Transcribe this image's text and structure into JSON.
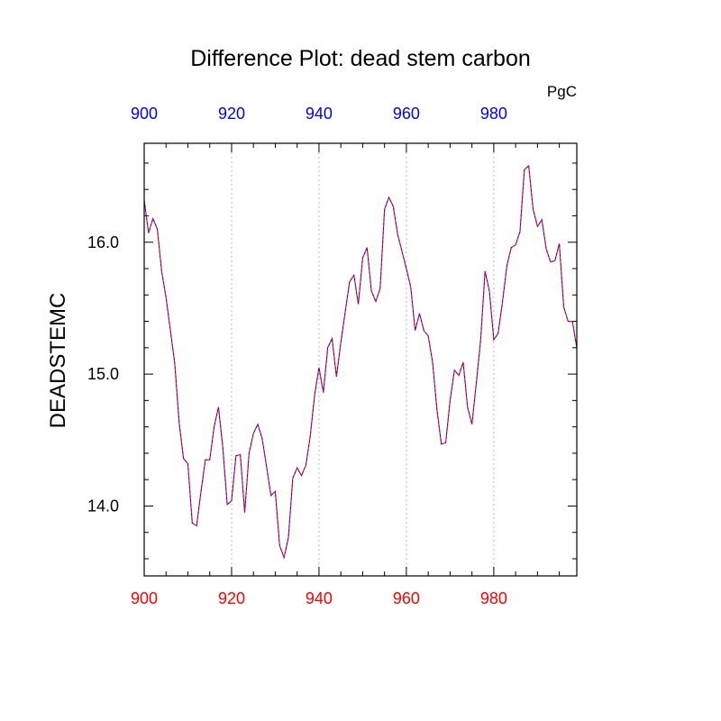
{
  "chart_data": {
    "type": "line",
    "title": "Difference Plot: dead stem carbon",
    "units": "PgC",
    "ylabel": "DEADSTEMC",
    "xlabel": "",
    "xlim": [
      900,
      999
    ],
    "ylim": [
      13.47,
      16.75
    ],
    "x_ticks": [
      900,
      920,
      940,
      960,
      980
    ],
    "y_ticks": [
      14.0,
      15.0,
      16.0
    ],
    "y_tick_labels": [
      "14.0",
      "15.0",
      "16.0"
    ],
    "x_tick_labels_bottom": [
      "900",
      "920",
      "940",
      "960",
      "980"
    ],
    "x_tick_labels_top": [
      "900",
      "920",
      "940",
      "960",
      "980"
    ],
    "grid": "vertical dotted lines at major x ticks",
    "colors": {
      "series_a": "#0000ff",
      "series_b": "#ff0000",
      "bottom_axis_labels": "#ff0000",
      "top_axis_labels": "#0000ff",
      "frame": "#000000",
      "grid": "#bbbbbb"
    },
    "x": [
      900,
      901,
      902,
      903,
      904,
      905,
      906,
      907,
      908,
      909,
      910,
      911,
      912,
      913,
      914,
      915,
      916,
      917,
      918,
      919,
      920,
      921,
      922,
      923,
      924,
      925,
      926,
      927,
      928,
      929,
      930,
      931,
      932,
      933,
      934,
      935,
      936,
      937,
      938,
      939,
      940,
      941,
      942,
      943,
      944,
      945,
      946,
      947,
      948,
      949,
      950,
      951,
      952,
      953,
      954,
      955,
      956,
      957,
      958,
      959,
      960,
      961,
      962,
      963,
      964,
      965,
      966,
      967,
      968,
      969,
      970,
      971,
      972,
      973,
      974,
      975,
      976,
      977,
      978,
      979,
      980,
      981,
      982,
      983,
      984,
      985,
      986,
      987,
      988,
      989,
      990,
      991,
      992,
      993,
      994,
      995,
      996,
      997,
      998,
      999
    ],
    "series": [
      {
        "values": [
          16.32,
          16.07,
          16.18,
          16.1,
          15.78,
          15.58,
          15.33,
          15.08,
          14.63,
          14.36,
          14.32,
          13.87,
          13.85,
          14.11,
          14.35,
          14.35,
          14.6,
          14.75,
          14.44,
          14.01,
          14.04,
          14.38,
          14.39,
          13.95,
          14.4,
          14.55,
          14.62,
          14.51,
          14.3,
          14.08,
          14.11,
          13.7,
          13.61,
          13.76,
          14.21,
          14.29,
          14.23,
          14.31,
          14.53,
          14.84,
          15.05,
          14.86,
          15.2,
          15.27,
          14.98,
          15.24,
          15.47,
          15.7,
          15.75,
          15.53,
          15.88,
          15.96,
          15.63,
          15.55,
          15.65,
          16.25,
          16.34,
          16.27,
          16.06,
          15.93,
          15.8,
          15.66,
          15.33,
          15.46,
          15.33,
          15.29,
          15.09,
          14.73,
          14.47,
          14.48,
          14.8,
          15.03,
          14.99,
          15.09,
          14.75,
          14.62,
          14.93,
          15.26,
          15.78,
          15.63,
          15.26,
          15.31,
          15.55,
          15.82,
          15.96,
          15.98,
          16.08,
          16.55,
          16.58,
          16.25,
          16.12,
          16.17,
          15.95,
          15.85,
          15.86,
          15.99,
          15.51,
          15.4,
          15.4,
          15.2
        ]
      }
    ]
  }
}
